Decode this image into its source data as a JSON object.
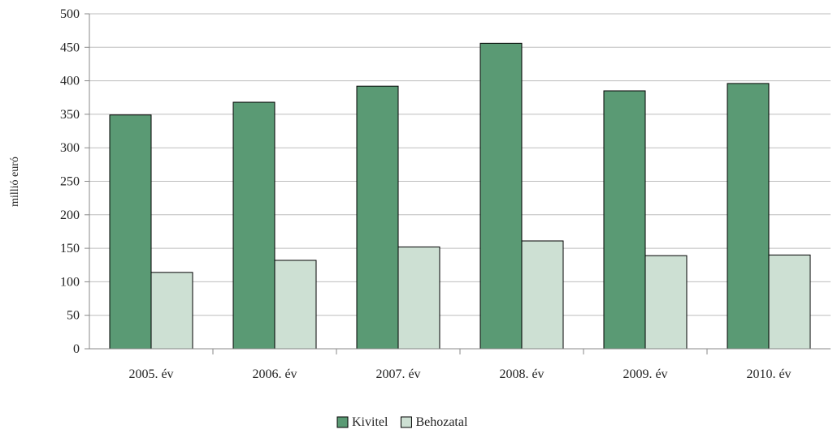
{
  "chart_data": {
    "type": "bar",
    "title": "",
    "xlabel": "",
    "ylabel": "millió euró",
    "ylim": [
      0,
      500
    ],
    "yticks": [
      0,
      50,
      100,
      150,
      200,
      250,
      300,
      350,
      400,
      450,
      500
    ],
    "grid": true,
    "legend_position": "bottom",
    "categories": [
      "2005. év",
      "2006. év",
      "2007. év",
      "2008. év",
      "2009. év",
      "2010. év"
    ],
    "series": [
      {
        "name": "Kivitel",
        "color": "#5a9a74",
        "values": [
          349,
          368,
          392,
          456,
          385,
          396
        ]
      },
      {
        "name": "Behozatal",
        "color": "#cde0d3",
        "values": [
          114,
          132,
          152,
          161,
          139,
          140
        ]
      }
    ]
  }
}
